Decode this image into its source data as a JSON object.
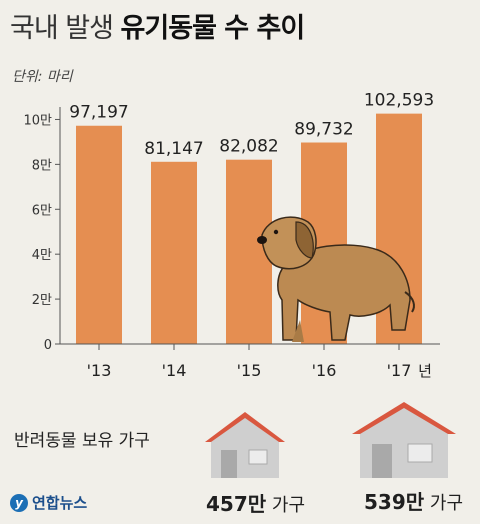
{
  "title_light": "국내 발생",
  "title_bold": "유기동물 수 추이",
  "unit_label": "단위: 마리",
  "chart_data": {
    "type": "bar",
    "categories": [
      "'13",
      "'14",
      "'15",
      "'16",
      "'17"
    ],
    "values": [
      97197,
      81147,
      82082,
      89732,
      102593
    ],
    "value_labels": [
      "97,197",
      "81,147",
      "82,082",
      "89,732",
      "102,593"
    ],
    "x_suffix": "년",
    "yticks": [
      0,
      20000,
      40000,
      60000,
      80000,
      100000
    ],
    "ytick_labels": [
      "0",
      "2만",
      "4만",
      "6만",
      "8만",
      "10만"
    ],
    "ylim": [
      0,
      110000
    ],
    "bar_color": "#e58e51",
    "grid": false
  },
  "households": {
    "label": "반려동물 보유 가구",
    "items": [
      {
        "value": "457만",
        "unit": "가구"
      },
      {
        "value": "539만",
        "unit": "가구"
      }
    ]
  },
  "logo": {
    "mark": "y",
    "text": "연합뉴스"
  },
  "colors": {
    "background": "#f1efe9",
    "roof": "#d9573f",
    "wall": "#c9c9c9"
  }
}
